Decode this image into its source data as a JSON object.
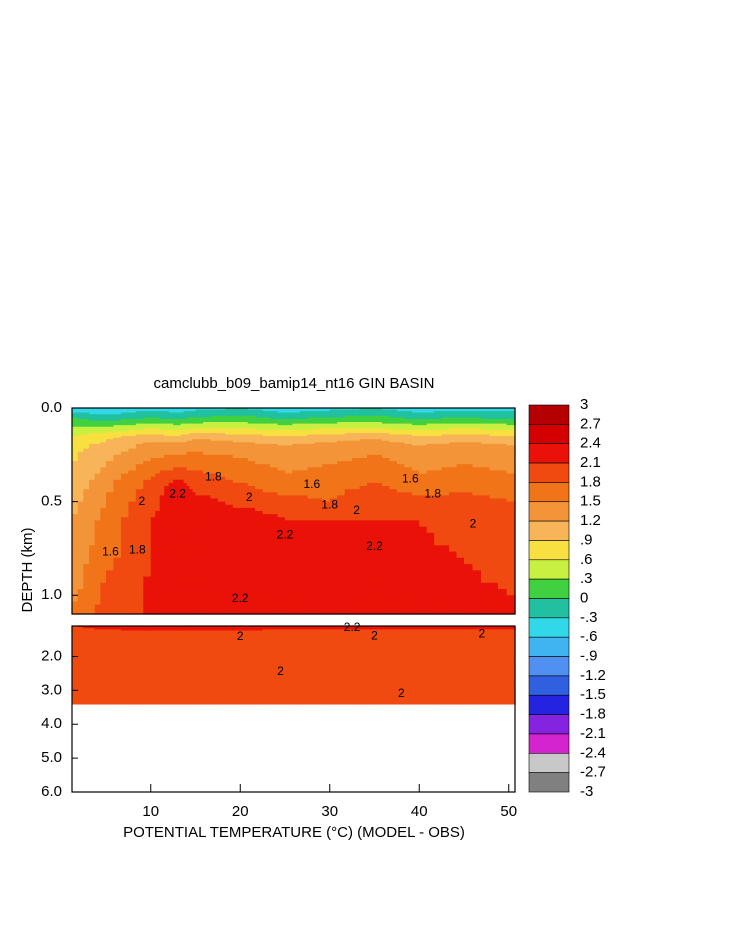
{
  "chart_data": {
    "type": "contour",
    "title": "camclubb_b09_bamip14_nt16 GIN BASIN",
    "xlabel": "POTENTIAL TEMPERATURE (°C) (MODEL - OBS)",
    "ylabel": "DEPTH (km)",
    "xlim": [
      1.2,
      50.7
    ],
    "xticks": [
      10,
      20,
      30,
      40,
      50
    ],
    "x": [
      1.2,
      5,
      10,
      13,
      15,
      20,
      25,
      30,
      35,
      40,
      45,
      50.7
    ],
    "panels": [
      {
        "ylim": [
          0,
          1.1
        ],
        "yticks": [
          {
            "value": 0,
            "label": "0.0"
          },
          0.5,
          {
            "value": 1,
            "label": "1.0"
          }
        ],
        "depth": [
          0,
          0.05,
          0.1,
          0.15,
          0.2,
          0.3,
          0.4,
          0.5,
          0.6,
          0.8,
          1.0,
          1.1
        ],
        "values": [
          [
            -0.5,
            -0.6,
            -0.4,
            -0.5,
            -0.4,
            -0.3,
            -0.5,
            -0.4,
            -0.3,
            -0.5,
            -0.4,
            -0.4
          ],
          [
            0,
            -0.2,
            0,
            -0.1,
            0,
            0.1,
            -0.1,
            0,
            0.1,
            -0.1,
            0,
            -0.1
          ],
          [
            0.3,
            0.3,
            0.5,
            0.4,
            0.5,
            0.5,
            0.4,
            0.5,
            0.5,
            0.4,
            0.5,
            0.4
          ],
          [
            0.6,
            0.8,
            1.0,
            0.9,
            1.1,
            1.0,
            0.9,
            1.0,
            1.1,
            0.9,
            1.0,
            0.9
          ],
          [
            0.8,
            1.0,
            1.3,
            1.3,
            1.4,
            1.3,
            1.2,
            1.3,
            1.4,
            1.2,
            1.3,
            1.2
          ],
          [
            0.9,
            1.2,
            1.6,
            1.7,
            1.7,
            1.6,
            1.4,
            1.5,
            1.6,
            1.4,
            1.5,
            1.4
          ],
          [
            1.0,
            1.4,
            1.9,
            2.2,
            2.0,
            1.8,
            1.6,
            1.7,
            1.8,
            1.6,
            1.7,
            1.6
          ],
          [
            1.1,
            1.5,
            2.0,
            2.3,
            2.2,
            2.0,
            1.9,
            1.8,
            2.0,
            1.9,
            1.9,
            1.8
          ],
          [
            1.2,
            1.6,
            2.1,
            2.2,
            2.2,
            2.35,
            2.1,
            2.1,
            2.1,
            2.1,
            2.0,
            1.9
          ],
          [
            1.3,
            1.7,
            2.1,
            2.2,
            2.2,
            2.3,
            2.2,
            2.15,
            2.2,
            2.15,
            2.1,
            2.0
          ],
          [
            1.4,
            1.9,
            2.15,
            2.2,
            2.2,
            2.2,
            2.15,
            2.15,
            2.1,
            2.15,
            2.15,
            2.1
          ],
          [
            1.6,
            1.9,
            2.15,
            2.15,
            2.2,
            2.15,
            2.15,
            2.15,
            2.1,
            2.15,
            2.15,
            2.15
          ]
        ],
        "contour_labels": [
          {
            "value": 2.2,
            "x": 13,
            "y": 0.46
          },
          {
            "value": 2,
            "x": 9,
            "y": 0.5
          },
          {
            "value": 1.8,
            "x": 17,
            "y": 0.37
          },
          {
            "value": 1.6,
            "x": 5.5,
            "y": 0.77
          },
          {
            "value": 1.8,
            "x": 8.5,
            "y": 0.76
          },
          {
            "value": 2,
            "x": 21,
            "y": 0.48
          },
          {
            "value": 2.2,
            "x": 25,
            "y": 0.68
          },
          {
            "value": 2.2,
            "x": 20,
            "y": 1.02
          },
          {
            "value": 1.8,
            "x": 30,
            "y": 0.52
          },
          {
            "value": 2,
            "x": 33,
            "y": 0.55
          },
          {
            "value": 2.2,
            "x": 35,
            "y": 0.74
          },
          {
            "value": 1.6,
            "x": 28,
            "y": 0.41
          },
          {
            "value": 1.6,
            "x": 39,
            "y": 0.38
          },
          {
            "value": 1.8,
            "x": 41.5,
            "y": 0.46
          },
          {
            "value": 2,
            "x": 46,
            "y": 0.62
          }
        ]
      },
      {
        "ylim": [
          1.1,
          6.0
        ],
        "yticks": [
          {
            "value": 2,
            "label": "2.0"
          },
          {
            "value": 3,
            "label": "3.0"
          },
          {
            "value": 4,
            "label": "4.0"
          },
          {
            "value": 5,
            "label": "5.0"
          },
          {
            "value": 6,
            "label": "6.0"
          }
        ],
        "depth": [
          1.1,
          1.3,
          1.6,
          2.0,
          2.5,
          3.0,
          3.4
        ],
        "values": [
          [
            2.1,
            2.15,
            2.2,
            2.2,
            2.2,
            2.2,
            2.2,
            2.2,
            2.2,
            2.2,
            2.2,
            2.2
          ],
          [
            2.05,
            2.05,
            2.05,
            2.05,
            2.05,
            2.05,
            2.0,
            2.0,
            2.0,
            2.0,
            2.0,
            2.0
          ],
          [
            2.0,
            2.0,
            2.0,
            2.0,
            2.0,
            1.95,
            2.0,
            2.0,
            2.0,
            1.95,
            1.9,
            1.9
          ],
          [
            1.95,
            1.95,
            2.0,
            2.0,
            2.0,
            2.0,
            2.0,
            2.0,
            2.0,
            1.95,
            1.9,
            1.9
          ],
          [
            1.95,
            1.95,
            2.0,
            2.0,
            2.0,
            2.0,
            2.0,
            2.0,
            2.0,
            2.0,
            1.95,
            1.95
          ],
          [
            1.9,
            2.0,
            2.0,
            2.0,
            2.0,
            2.0,
            2.0,
            2.0,
            2.0,
            1.95,
            1.95,
            1.95
          ],
          [
            1.9,
            2.0,
            2.0,
            2.0,
            2.0,
            2.0,
            2.0,
            2.0,
            2.0,
            2.0,
            1.95,
            1.95
          ]
        ],
        "contour_labels": [
          {
            "value": 2.2,
            "x": 32.5,
            "y": 1.15
          },
          {
            "value": 2,
            "x": 20,
            "y": 1.42
          },
          {
            "value": 2,
            "x": 35,
            "y": 1.4
          },
          {
            "value": 2,
            "x": 47,
            "y": 1.35
          },
          {
            "value": 2,
            "x": 24.5,
            "y": 2.45
          },
          {
            "value": 2,
            "x": 38,
            "y": 3.1
          }
        ]
      }
    ],
    "colorbar": {
      "levels": [
        3,
        2.7,
        2.4,
        2.1,
        1.8,
        1.5,
        1.2,
        {
          "value": 0.9,
          "label": ".9"
        },
        {
          "value": 0.6,
          "label": ".6"
        },
        {
          "value": 0.3,
          "label": ".3"
        },
        0,
        {
          "value": -0.3,
          "label": "-.3"
        },
        {
          "value": -0.6,
          "label": "-.6"
        },
        {
          "value": -0.9,
          "label": "-.9"
        },
        -1.2,
        -1.5,
        -1.8,
        -2.1,
        -2.4,
        -2.7,
        -3
      ],
      "colors": [
        "#b40000",
        "#d40000",
        "#ea1208",
        "#f04a10",
        "#f27418",
        "#f49438",
        "#f8b458",
        "#f8e040",
        "#c8f040",
        "#40d040",
        "#20c0a0",
        "#30d8e8",
        "#40b4f0",
        "#5090f0",
        "#3060e0",
        "#2424e0",
        "#8424e0",
        "#d424d0",
        "#c8c8c8",
        "#808080"
      ]
    }
  }
}
